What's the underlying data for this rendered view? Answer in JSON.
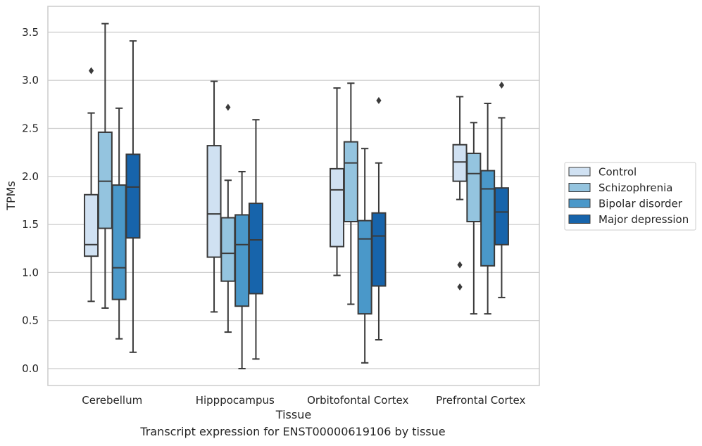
{
  "caption": "Transcript expression for ENST00000619106 by tissue",
  "chart_data": {
    "type": "box",
    "xlabel": "Tissue",
    "ylabel": "TPMs",
    "ylim": [
      -0.17,
      3.77
    ],
    "yticks": [
      0.0,
      0.5,
      1.0,
      1.5,
      2.0,
      2.5,
      3.0,
      3.5
    ],
    "ytick_labels": [
      "0.0",
      "0.5",
      "1.0",
      "1.5",
      "2.0",
      "2.5",
      "3.0",
      "3.5"
    ],
    "grid": "horizontal",
    "legend_position": "right",
    "categories": [
      "Cerebellum",
      "Hipppocampus",
      "Orbitofontal Cortex",
      "Prefrontal Cortex"
    ],
    "series": [
      {
        "name": "Control",
        "color": "#d0e1f2",
        "boxes": [
          {
            "whislo": 0.7,
            "q1": 1.17,
            "med": 1.29,
            "q3": 1.81,
            "whishi": 2.66,
            "fliers": [
              3.1
            ]
          },
          {
            "whislo": 0.59,
            "q1": 1.16,
            "med": 1.61,
            "q3": 2.32,
            "whishi": 2.99,
            "fliers": []
          },
          {
            "whislo": 0.97,
            "q1": 1.27,
            "med": 1.86,
            "q3": 2.08,
            "whishi": 2.92,
            "fliers": []
          },
          {
            "whislo": 1.76,
            "q1": 1.95,
            "med": 2.15,
            "q3": 2.33,
            "whishi": 2.83,
            "fliers": [
              1.08,
              0.85
            ]
          }
        ]
      },
      {
        "name": "Schizophrenia",
        "color": "#94c4df",
        "boxes": [
          {
            "whislo": 0.63,
            "q1": 1.46,
            "med": 1.95,
            "q3": 2.46,
            "whishi": 3.59,
            "fliers": []
          },
          {
            "whislo": 0.38,
            "q1": 0.91,
            "med": 1.2,
            "q3": 1.57,
            "whishi": 1.96,
            "fliers": [
              2.72
            ]
          },
          {
            "whislo": 0.67,
            "q1": 1.53,
            "med": 2.14,
            "q3": 2.36,
            "whishi": 2.97,
            "fliers": []
          },
          {
            "whislo": 0.57,
            "q1": 1.53,
            "med": 2.03,
            "q3": 2.24,
            "whishi": 2.56,
            "fliers": []
          }
        ]
      },
      {
        "name": "Bipolar disorder",
        "color": "#4a98c9",
        "boxes": [
          {
            "whislo": 0.31,
            "q1": 0.72,
            "med": 1.05,
            "q3": 1.91,
            "whishi": 2.71,
            "fliers": []
          },
          {
            "whislo": 0.0,
            "q1": 0.65,
            "med": 1.29,
            "q3": 1.6,
            "whishi": 2.05,
            "fliers": []
          },
          {
            "whislo": 0.06,
            "q1": 0.57,
            "med": 1.35,
            "q3": 1.54,
            "whishi": 2.29,
            "fliers": []
          },
          {
            "whislo": 0.57,
            "q1": 1.07,
            "med": 1.87,
            "q3": 2.06,
            "whishi": 2.76,
            "fliers": []
          }
        ]
      },
      {
        "name": "Major depression",
        "color": "#1764ab",
        "boxes": [
          {
            "whislo": 0.17,
            "q1": 1.36,
            "med": 1.89,
            "q3": 2.23,
            "whishi": 3.41,
            "fliers": []
          },
          {
            "whislo": 0.1,
            "q1": 0.78,
            "med": 1.34,
            "q3": 1.72,
            "whishi": 2.59,
            "fliers": []
          },
          {
            "whislo": 0.3,
            "q1": 0.86,
            "med": 1.38,
            "q3": 1.62,
            "whishi": 2.14,
            "fliers": [
              2.79
            ]
          },
          {
            "whislo": 0.74,
            "q1": 1.29,
            "med": 1.63,
            "q3": 1.88,
            "whishi": 2.61,
            "fliers": [
              2.95
            ]
          }
        ]
      }
    ]
  },
  "colors": {
    "grid": "#cccccc",
    "frame": "#cccccc",
    "box_edge": "#3a3a3a"
  }
}
